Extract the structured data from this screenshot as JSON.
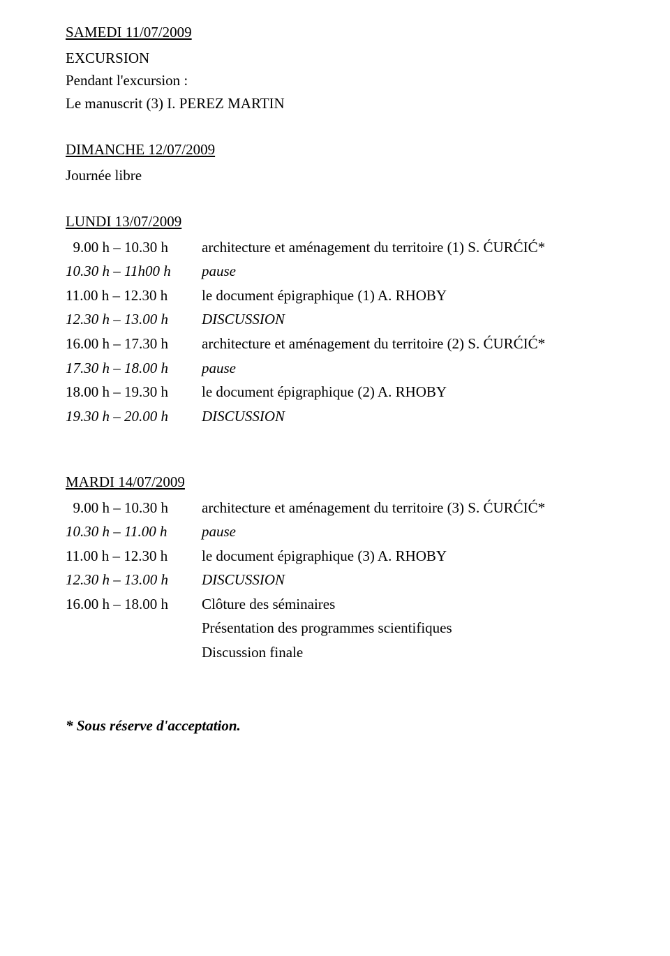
{
  "samedi": {
    "date": "SAMEDI 11/07/2009",
    "line1": "EXCURSION",
    "line2": "Pendant l'excursion :",
    "line3": "Le manuscrit (3) I. PEREZ MARTIN"
  },
  "dimanche": {
    "date": "DIMANCHE 12/07/2009",
    "line1": "Journée libre"
  },
  "lundi": {
    "date": "LUNDI 13/07/2009",
    "rows": [
      {
        "time": "  9.00 h – 10.30 h",
        "desc": "architecture et aménagement du territoire (1)  S. ĆURĆIĆ*",
        "time_italic": false,
        "desc_italic": false
      },
      {
        "time": "10.30 h – 11h00 h",
        "desc": "pause",
        "time_italic": true,
        "desc_italic": true
      },
      {
        "time": "11.00 h – 12.30 h",
        "desc": "le document épigraphique (1) A. RHOBY",
        "time_italic": false,
        "desc_italic": false
      },
      {
        "time": "12.30 h – 13.00 h",
        "desc": "DISCUSSION",
        "time_italic": true,
        "desc_italic": true
      },
      {
        "time": "16.00 h – 17.30 h",
        "desc": "architecture et aménagement du territoire (2)  S. ĆURĆIĆ*",
        "time_italic": false,
        "desc_italic": false
      },
      {
        "time": "17.30 h – 18.00 h",
        "desc": "pause",
        "time_italic": true,
        "desc_italic": true
      },
      {
        "time": "18.00 h – 19.30 h",
        "desc": "le document épigraphique (2) A. RHOBY",
        "time_italic": false,
        "desc_italic": false
      },
      {
        "time": "19.30 h – 20.00 h",
        "desc": "DISCUSSION",
        "time_italic": true,
        "desc_italic": true
      }
    ]
  },
  "mardi": {
    "date": "MARDI 14/07/2009",
    "rows": [
      {
        "time": "  9.00 h – 10.30 h",
        "desc": "architecture et aménagement du territoire (3)  S. ĆURĆIĆ*",
        "time_italic": false,
        "desc_italic": false
      },
      {
        "time": "10.30 h – 11.00 h",
        "desc": "pause",
        "time_italic": true,
        "desc_italic": true
      },
      {
        "time": "11.00 h – 12.30 h",
        "desc": "le document épigraphique (3) A. RHOBY",
        "time_italic": false,
        "desc_italic": false
      },
      {
        "time": "12.30 h – 13.00 h",
        "desc": "DISCUSSION",
        "time_italic": true,
        "desc_italic": true
      },
      {
        "time": "16.00 h – 18.00 h",
        "desc": "Clôture des séminaires",
        "time_italic": false,
        "desc_italic": false
      },
      {
        "time": "",
        "desc": "Présentation des programmes scientifiques",
        "time_italic": false,
        "desc_italic": false
      },
      {
        "time": "",
        "desc": "Discussion finale",
        "time_italic": false,
        "desc_italic": false
      }
    ]
  },
  "footnote": "* Sous réserve d'acceptation."
}
